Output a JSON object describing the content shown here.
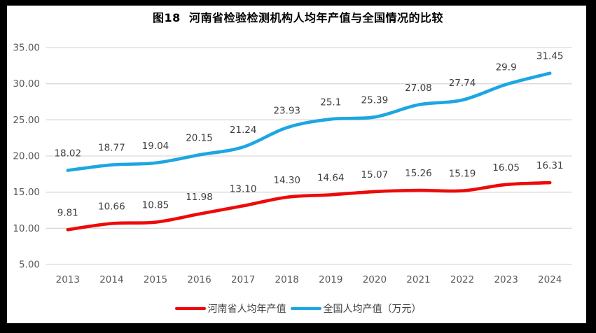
{
  "title": {
    "text": "图18  河南省检验检测机构人均年产值与全国情况的比较"
  },
  "legend": {
    "items": [
      {
        "label": "河南省人均年产值",
        "color": "#ED0A0A"
      },
      {
        "label": "全国人均产值（万元）",
        "color": "#1CA6E2"
      }
    ]
  },
  "colors": {
    "grid": "#D9D9D9",
    "axis_label": "#595959",
    "data_label": "#3F3F3F",
    "title": "#000000",
    "frame": "#000000",
    "background": "#FFFFFF"
  },
  "chart_data": {
    "type": "line",
    "title": "图18  河南省检验检测机构人均年产值与全国情况的比较",
    "categories": [
      "2013",
      "2014",
      "2015",
      "2016",
      "2017",
      "2018",
      "2019",
      "2020",
      "2021",
      "2022",
      "2023",
      "2024"
    ],
    "series": [
      {
        "name": "河南省人均年产值",
        "color": "#ED0A0A",
        "values": [
          9.81,
          10.66,
          10.85,
          11.98,
          13.1,
          14.3,
          14.64,
          15.07,
          15.26,
          15.19,
          16.05,
          16.31
        ],
        "labels": [
          "9.81",
          "10.66",
          "10.85",
          "11.98",
          "13.10",
          "14.30",
          "14.64",
          "15.07",
          "15.26",
          "15.19",
          "16.05",
          "16.31"
        ]
      },
      {
        "name": "全国人均产值（万元）",
        "color": "#1CA6E2",
        "values": [
          18.02,
          18.77,
          19.04,
          20.15,
          21.24,
          23.93,
          25.1,
          25.39,
          27.08,
          27.74,
          29.9,
          31.45
        ],
        "labels": [
          "18.02",
          "18.77",
          "19.04",
          "20.15",
          "21.24",
          "23.93",
          "25.1",
          "25.39",
          "27.08",
          "27.74",
          "29.9",
          "31.45"
        ]
      }
    ],
    "ylim": [
      5,
      35
    ],
    "yticks": [
      "5.00",
      "10.00",
      "15.00",
      "20.00",
      "25.00",
      "30.00",
      "35.00"
    ],
    "grid": true,
    "smooth_lines": true,
    "legend_position": "bottom"
  }
}
